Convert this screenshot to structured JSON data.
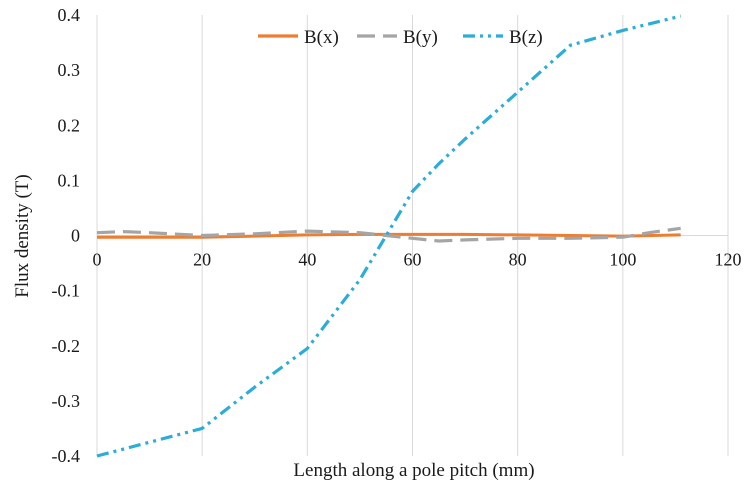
{
  "chart_data": {
    "type": "line",
    "title": "",
    "xlabel": "Length along a pole pitch (mm)",
    "ylabel": "Flux density (T)",
    "xlim": [
      0,
      120
    ],
    "ylim": [
      -0.4,
      0.4
    ],
    "x_ticks": [
      "0",
      "20",
      "40",
      "60",
      "80",
      "100",
      "120"
    ],
    "y_ticks": [
      "0.4",
      "0.3",
      "0.2",
      "0.1",
      "0",
      "-0.1",
      "-0.2",
      "-0.3",
      "-0.4"
    ],
    "grid": "vertical",
    "legend_position": "top",
    "series": [
      {
        "name": "B(x)",
        "color": "#ED7D31",
        "dash": "solid",
        "x": [
          0,
          10,
          20,
          30,
          40,
          50,
          60,
          70,
          80,
          90,
          100,
          111
        ],
        "y": [
          -0.003,
          -0.003,
          -0.003,
          -0.001,
          0.001,
          0.002,
          0.002,
          0.002,
          0.001,
          0.0,
          -0.001,
          0.001
        ]
      },
      {
        "name": "B(y)",
        "color": "#A5A5A5",
        "dash": "long-dash",
        "x": [
          0,
          5,
          10,
          20,
          30,
          40,
          50,
          60,
          65,
          70,
          80,
          90,
          100,
          105,
          111
        ],
        "y": [
          0.005,
          0.007,
          0.005,
          0.0,
          0.003,
          0.008,
          0.005,
          -0.005,
          -0.01,
          -0.008,
          -0.005,
          -0.005,
          -0.003,
          0.005,
          0.013
        ]
      },
      {
        "name": "B(z)",
        "color": "#2AADD6",
        "dash": "dash-dot-dot",
        "x": [
          0,
          10,
          20,
          30,
          40,
          50,
          55,
          60,
          65,
          70,
          80,
          90,
          100,
          111
        ],
        "y": [
          -0.4,
          -0.375,
          -0.35,
          -0.275,
          -0.205,
          -0.08,
          0.0,
          0.08,
          0.13,
          0.175,
          0.26,
          0.345,
          0.372,
          0.398
        ]
      }
    ]
  }
}
